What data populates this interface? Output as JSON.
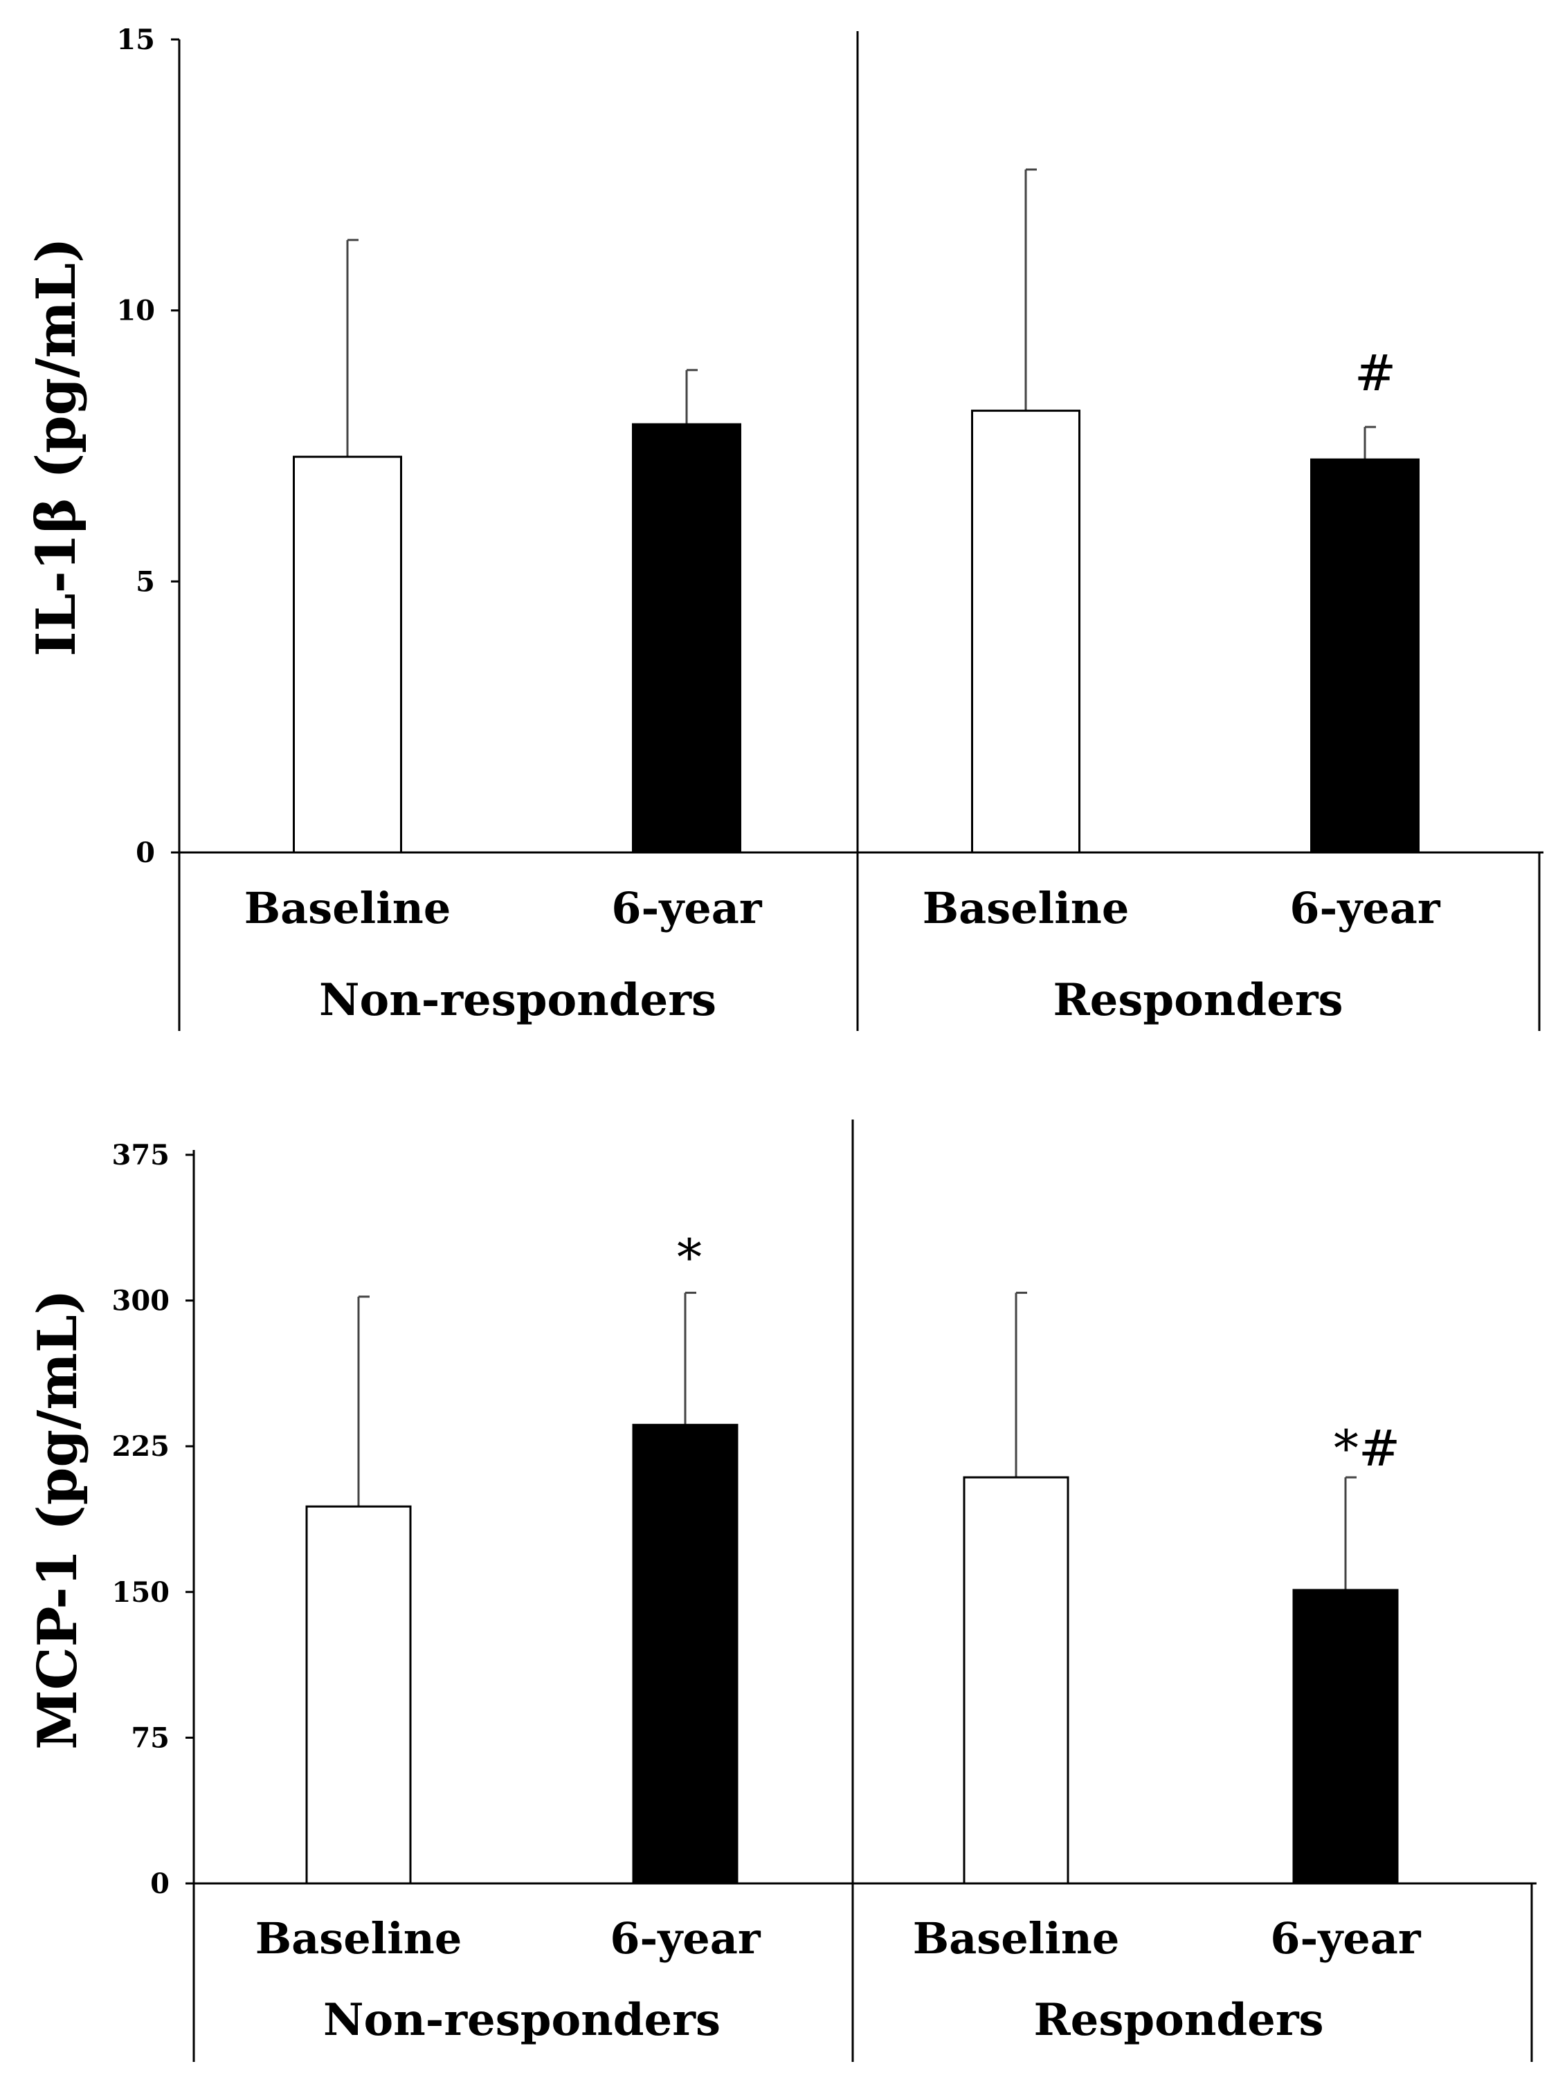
{
  "chart_data": [
    {
      "type": "bar",
      "ylabel": "IL-1β (pg/mL)",
      "ylim": [
        0,
        15
      ],
      "yticks": [
        0,
        5,
        10,
        15
      ],
      "groups": [
        {
          "name": "Non-responders",
          "bars": [
            {
              "category": "Baseline",
              "value": 7.3,
              "error": 4.0,
              "fill": "white",
              "annotation": ""
            },
            {
              "category": "6-year",
              "value": 7.9,
              "error": 1.0,
              "fill": "black",
              "annotation": ""
            }
          ]
        },
        {
          "name": "Responders",
          "bars": [
            {
              "category": "Baseline",
              "value": 8.15,
              "error": 4.45,
              "fill": "white",
              "annotation": ""
            },
            {
              "category": "6-year",
              "value": 7.25,
              "error": 0.6,
              "fill": "black",
              "annotation": "#"
            }
          ]
        }
      ]
    },
    {
      "type": "bar",
      "ylabel": "MCP-1 (pg/mL)",
      "ylim": [
        0,
        375
      ],
      "yticks": [
        0,
        75,
        150,
        225,
        300,
        375
      ],
      "groups": [
        {
          "name": "Non-responders",
          "bars": [
            {
              "category": "Baseline",
              "value": 194,
              "error": 108,
              "fill": "white",
              "annotation": ""
            },
            {
              "category": "6-year",
              "value": 236,
              "error": 68,
              "fill": "black",
              "annotation": "*"
            }
          ]
        },
        {
          "name": "Responders",
          "bars": [
            {
              "category": "Baseline",
              "value": 209,
              "error": 95,
              "fill": "white",
              "annotation": ""
            },
            {
              "category": "6-year",
              "value": 151,
              "error": 58,
              "fill": "black",
              "annotation": "*#"
            }
          ]
        }
      ]
    }
  ]
}
